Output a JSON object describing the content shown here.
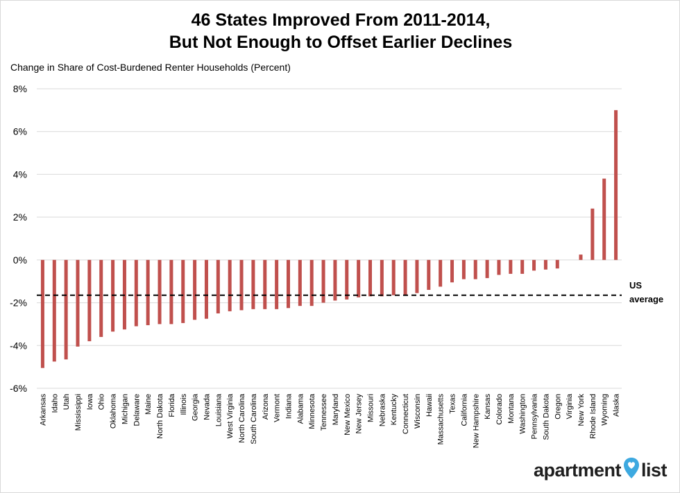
{
  "chart_data": {
    "type": "bar",
    "title_lines": [
      "46 States Improved From 2011-2014,",
      "But Not Enough to Offset Earlier Declines"
    ],
    "ylabel": "Change in Share of Cost-Burdened Renter Households (Percent)",
    "ylim": [
      -6,
      8
    ],
    "yticks": [
      -6,
      -4,
      -2,
      0,
      2,
      4,
      6,
      8
    ],
    "ytick_labels": [
      "-6%",
      "-4%",
      "-2%",
      "0%",
      "2%",
      "4%",
      "6%",
      "8%"
    ],
    "grid": true,
    "bar_color": "#c0504d",
    "categories": [
      "Arkansas",
      "Idaho",
      "Utah",
      "Mississippi",
      "Iowa",
      "Ohio",
      "Oklahoma",
      "Michigan",
      "Delaware",
      "Maine",
      "North Dakota",
      "Florida",
      "Illinois",
      "Georgia",
      "Nevada",
      "Louisiana",
      "West Virginia",
      "North Carolina",
      "South Carolina",
      "Arizona",
      "Vermont",
      "Indiana",
      "Alabama",
      "Minnesota",
      "Tennessee",
      "Maryland",
      "New Mexico",
      "New Jersey",
      "Missouri",
      "Nebraska",
      "Kentucky",
      "Connecticut",
      "Wisconsin",
      "Hawaii",
      "Massachusetts",
      "Texas",
      "California",
      "New Hampshire",
      "Kansas",
      "Colorado",
      "Montana",
      "Washington",
      "Pennsylvania",
      "South Dakota",
      "Oregon",
      "Virginia",
      "New York",
      "Rhode Island",
      "Wyoming",
      "Alaska"
    ],
    "values": [
      -5.05,
      -4.75,
      -4.65,
      -4.05,
      -3.8,
      -3.6,
      -3.35,
      -3.25,
      -3.1,
      -3.05,
      -3.0,
      -3.0,
      -2.95,
      -2.8,
      -2.75,
      -2.5,
      -2.4,
      -2.35,
      -2.3,
      -2.3,
      -2.3,
      -2.25,
      -2.15,
      -2.15,
      -2.0,
      -1.9,
      -1.85,
      -1.75,
      -1.7,
      -1.7,
      -1.65,
      -1.65,
      -1.55,
      -1.4,
      -1.25,
      -1.05,
      -0.9,
      -0.9,
      -0.85,
      -0.7,
      -0.65,
      -0.65,
      -0.5,
      -0.45,
      -0.4,
      0.0,
      0.25,
      2.4,
      3.8,
      7.0
    ],
    "reference_line": {
      "value": -1.65,
      "label_lines": [
        "US",
        "average"
      ]
    }
  },
  "brand": {
    "pre": "apartment",
    "post": "list",
    "pin_color": "#3da9e0"
  }
}
